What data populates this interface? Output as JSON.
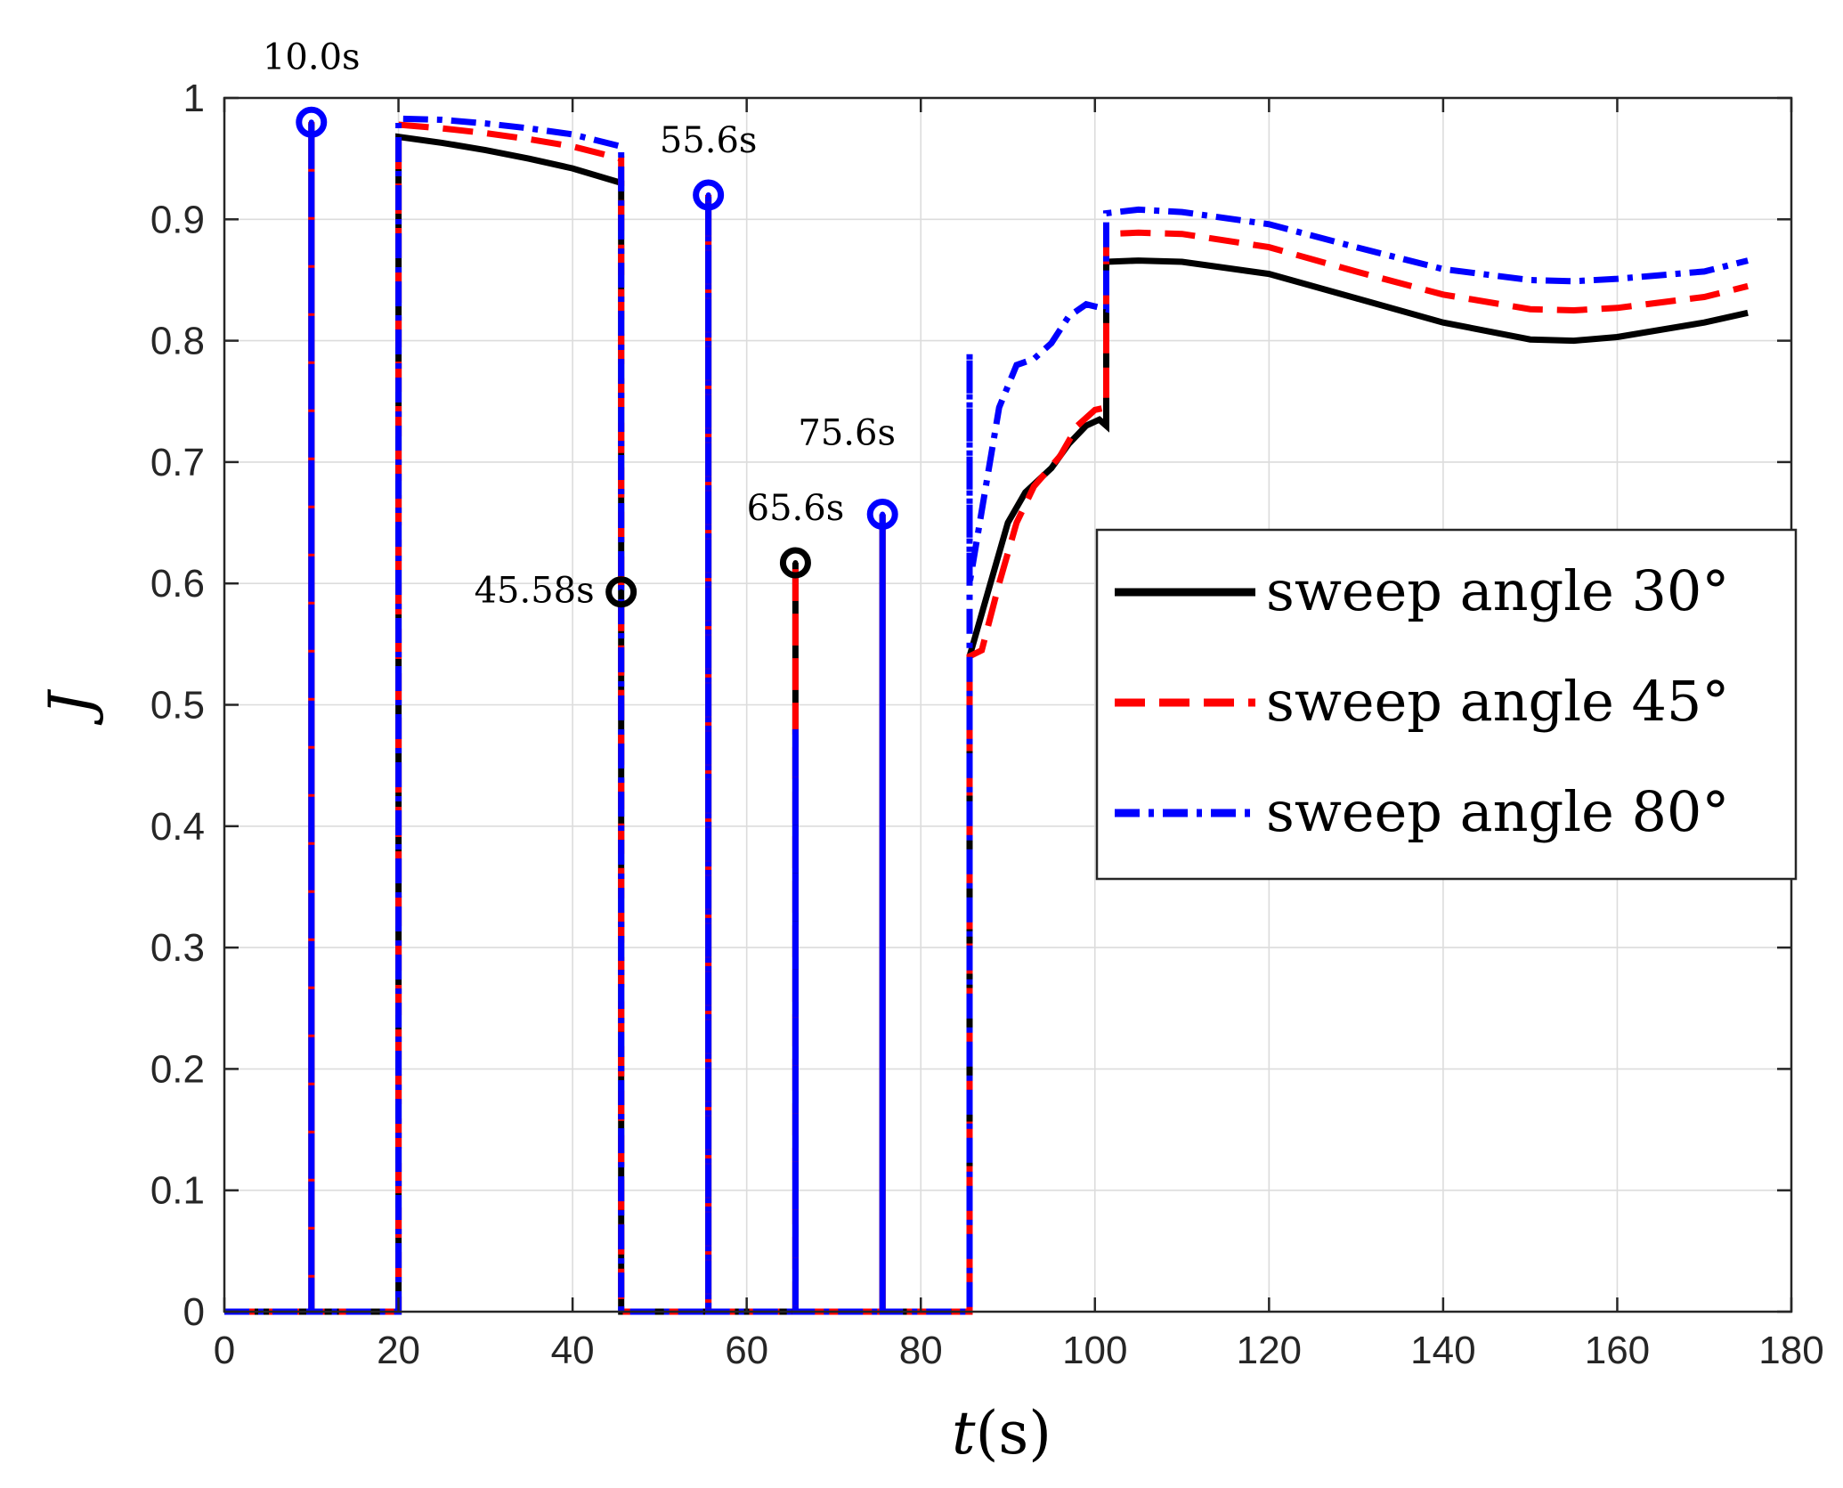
{
  "chart_data": {
    "type": "line",
    "title": "",
    "xlabel_italic": "t",
    "xlabel_unit": "(s)",
    "ylabel": "J",
    "xlim": [
      0,
      180
    ],
    "ylim": [
      0,
      1
    ],
    "xticks": [
      0,
      20,
      40,
      60,
      80,
      100,
      120,
      140,
      160,
      180
    ],
    "yticks": [
      0,
      0.1,
      0.2,
      0.3,
      0.4,
      0.5,
      0.6,
      0.7,
      0.8,
      0.9,
      1
    ],
    "ytick_labels": [
      "0",
      "0.1",
      "0.2",
      "0.3",
      "0.4",
      "0.5",
      "0.6",
      "0.7",
      "0.8",
      "0.9",
      "1"
    ],
    "grid": true,
    "legend_position": "center-right",
    "series": [
      {
        "name": "sweep angle 30°",
        "color": "#000000",
        "style": "solid",
        "points": [
          [
            0,
            0
          ],
          [
            10,
            0
          ],
          [
            10,
            0.98
          ],
          [
            10,
            0
          ],
          [
            20,
            0
          ],
          [
            20,
            0.968
          ],
          [
            25,
            0.963
          ],
          [
            30,
            0.957
          ],
          [
            35,
            0.95
          ],
          [
            40,
            0.942
          ],
          [
            45.58,
            0.93
          ],
          [
            45.58,
            0.593
          ],
          [
            45.58,
            0
          ],
          [
            55.6,
            0
          ],
          [
            55.6,
            0.92
          ],
          [
            55.6,
            0
          ],
          [
            65.6,
            0
          ],
          [
            65.6,
            0.617
          ],
          [
            65.6,
            0
          ],
          [
            75.6,
            0
          ],
          [
            75.6,
            0.657
          ],
          [
            75.6,
            0
          ],
          [
            85.6,
            0
          ],
          [
            85.6,
            0.54
          ],
          [
            88,
            0.6
          ],
          [
            90,
            0.65
          ],
          [
            92,
            0.675
          ],
          [
            95,
            0.695
          ],
          [
            97,
            0.715
          ],
          [
            99,
            0.73
          ],
          [
            100.5,
            0.735
          ],
          [
            101.3,
            0.73
          ],
          [
            101.3,
            0.865
          ],
          [
            105,
            0.866
          ],
          [
            110,
            0.865
          ],
          [
            120,
            0.855
          ],
          [
            130,
            0.835
          ],
          [
            140,
            0.815
          ],
          [
            150,
            0.801
          ],
          [
            155,
            0.8
          ],
          [
            160,
            0.803
          ],
          [
            170,
            0.815
          ],
          [
            175,
            0.823
          ]
        ]
      },
      {
        "name": "sweep angle 45°",
        "color": "#ff0000",
        "style": "dashed",
        "points": [
          [
            0,
            0
          ],
          [
            10,
            0
          ],
          [
            10,
            0.98
          ],
          [
            10,
            0
          ],
          [
            20,
            0
          ],
          [
            20,
            0.978
          ],
          [
            25,
            0.975
          ],
          [
            30,
            0.971
          ],
          [
            35,
            0.966
          ],
          [
            40,
            0.96
          ],
          [
            45.58,
            0.95
          ],
          [
            45.58,
            0
          ],
          [
            55.6,
            0
          ],
          [
            55.6,
            0.92
          ],
          [
            55.6,
            0
          ],
          [
            65.6,
            0
          ],
          [
            65.6,
            0.617
          ],
          [
            65.6,
            0
          ],
          [
            75.6,
            0
          ],
          [
            75.6,
            0.657
          ],
          [
            75.6,
            0
          ],
          [
            85.6,
            0
          ],
          [
            85.6,
            0.54
          ],
          [
            87,
            0.545
          ],
          [
            89,
            0.6
          ],
          [
            91,
            0.65
          ],
          [
            93,
            0.68
          ],
          [
            96,
            0.705
          ],
          [
            98,
            0.73
          ],
          [
            100,
            0.743
          ],
          [
            101.3,
            0.745
          ],
          [
            101.3,
            0.888
          ],
          [
            105,
            0.889
          ],
          [
            110,
            0.888
          ],
          [
            120,
            0.877
          ],
          [
            130,
            0.857
          ],
          [
            140,
            0.838
          ],
          [
            150,
            0.826
          ],
          [
            155,
            0.825
          ],
          [
            160,
            0.827
          ],
          [
            170,
            0.836
          ],
          [
            175,
            0.845
          ]
        ]
      },
      {
        "name": "sweep angle 80°",
        "color": "#0000ff",
        "style": "dashdot",
        "points": [
          [
            0,
            0
          ],
          [
            10,
            0
          ],
          [
            10,
            0.98
          ],
          [
            10,
            0
          ],
          [
            20,
            0
          ],
          [
            20,
            0.983
          ],
          [
            25,
            0.982
          ],
          [
            30,
            0.979
          ],
          [
            35,
            0.975
          ],
          [
            40,
            0.97
          ],
          [
            45.58,
            0.96
          ],
          [
            45.58,
            0
          ],
          [
            55.6,
            0
          ],
          [
            55.6,
            0.92
          ],
          [
            55.6,
            0
          ],
          [
            65.6,
            0
          ],
          [
            65.6,
            0.48
          ],
          [
            65.6,
            0
          ],
          [
            75.6,
            0
          ],
          [
            75.6,
            0.657
          ],
          [
            75.6,
            0
          ],
          [
            85.6,
            0
          ],
          [
            85.6,
            0.79
          ],
          [
            85.6,
            0.6
          ],
          [
            87,
            0.66
          ],
          [
            89,
            0.745
          ],
          [
            91,
            0.78
          ],
          [
            93,
            0.785
          ],
          [
            95,
            0.798
          ],
          [
            97,
            0.82
          ],
          [
            99,
            0.83
          ],
          [
            101.3,
            0.826
          ],
          [
            101.3,
            0.905
          ],
          [
            105,
            0.908
          ],
          [
            110,
            0.906
          ],
          [
            120,
            0.896
          ],
          [
            130,
            0.877
          ],
          [
            140,
            0.859
          ],
          [
            150,
            0.85
          ],
          [
            155,
            0.849
          ],
          [
            160,
            0.851
          ],
          [
            170,
            0.857
          ],
          [
            175,
            0.866
          ]
        ]
      }
    ],
    "markers": [
      {
        "t": 10.0,
        "J": 0.98,
        "color": "#0000ff",
        "label": "10.0s",
        "label_pos": "above"
      },
      {
        "t": 45.58,
        "J": 0.593,
        "color": "#000000",
        "label": "45.58s",
        "label_pos": "left"
      },
      {
        "t": 55.6,
        "J": 0.92,
        "color": "#0000ff",
        "label": "55.6s",
        "label_pos": "above"
      },
      {
        "t": 65.6,
        "J": 0.617,
        "color": "#000000",
        "label": "65.6s",
        "label_pos": "above"
      },
      {
        "t": 75.6,
        "J": 0.657,
        "color": "#0000ff",
        "label": "75.6s",
        "label_pos": "above-left"
      }
    ]
  }
}
